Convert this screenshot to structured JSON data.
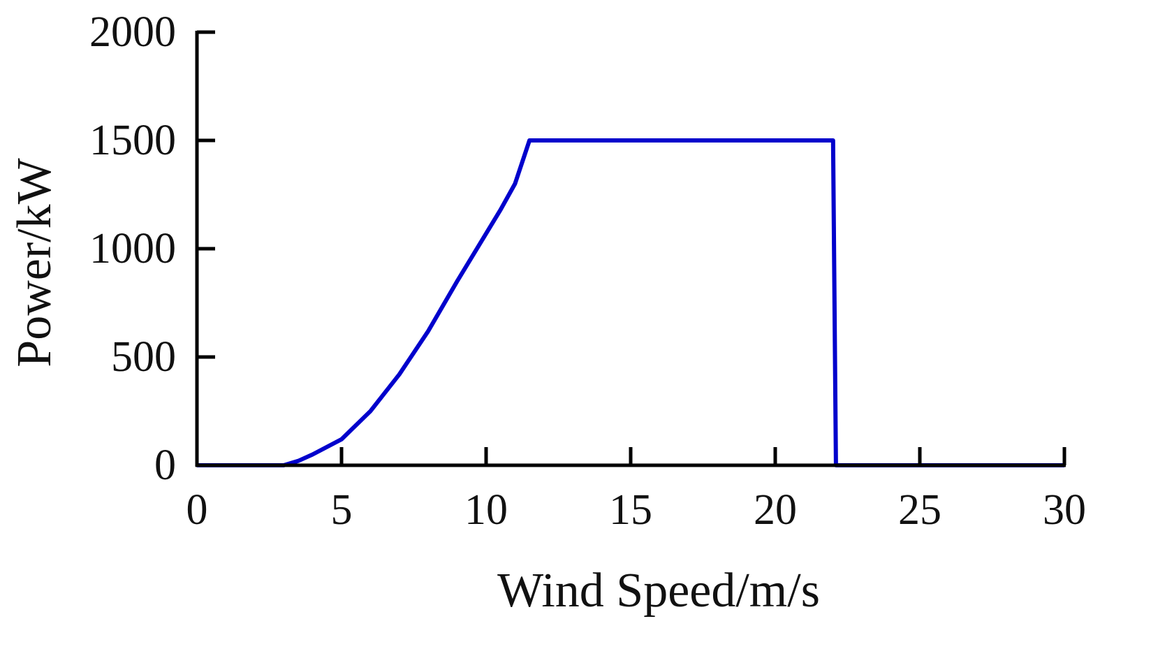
{
  "colors": {
    "axis": "#000000",
    "series": "#0000CC",
    "text": "#111111",
    "background": "#FFFFFF"
  },
  "chart_data": {
    "type": "line",
    "title": "",
    "xlabel": "Wind Speed/m/s",
    "ylabel": "Power/kW",
    "xlim": [
      0,
      30
    ],
    "ylim": [
      0,
      2000
    ],
    "xticks": [
      0,
      5,
      10,
      15,
      20,
      25,
      30
    ],
    "yticks": [
      0,
      500,
      1000,
      1500,
      2000
    ],
    "xtick_labels": [
      "0",
      "5",
      "10",
      "15",
      "20",
      "25",
      "30"
    ],
    "ytick_labels": [
      "0",
      "500",
      "1000",
      "1500",
      "2000"
    ],
    "grid": false,
    "legend": "none",
    "series": [
      {
        "x": [
          0,
          3,
          3.5,
          4,
          5,
          6,
          7,
          8,
          9,
          10,
          10.5,
          11,
          11.5,
          22,
          22.1,
          30
        ],
        "y": [
          0,
          0,
          20,
          50,
          120,
          250,
          420,
          620,
          850,
          1070,
          1180,
          1300,
          1500,
          1500,
          0,
          0
        ]
      }
    ]
  }
}
